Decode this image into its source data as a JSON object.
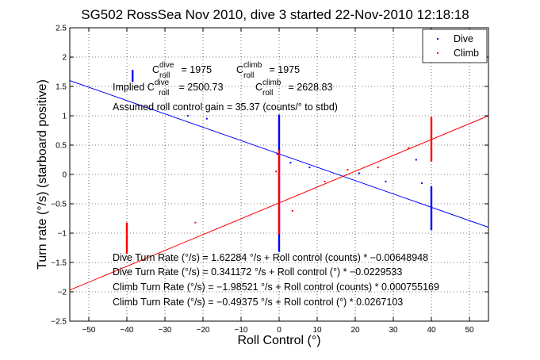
{
  "chart_data": {
    "type": "scatter",
    "title": "SG502 RossSea Nov 2010, dive 3 started 22-Nov-2010 12:18:18",
    "xlabel": "Roll Control (°)",
    "ylabel": "Turn rate (°/s) (starboard positive)",
    "xlim": [
      -55,
      55
    ],
    "ylim": [
      -2.5,
      2.5
    ],
    "xticks": [
      -50,
      -40,
      -30,
      -20,
      -10,
      0,
      10,
      20,
      30,
      40,
      50
    ],
    "yticks": [
      -2.5,
      -2,
      -1.5,
      -1,
      -0.5,
      0,
      0.5,
      1,
      1.5,
      2,
      2.5
    ],
    "xtick_labels": [
      "−50",
      "−40",
      "−30",
      "−20",
      "−10",
      "0",
      "10",
      "20",
      "30",
      "40",
      "50"
    ],
    "ytick_labels": [
      "−2.5",
      "−2",
      "−1.5",
      "−1",
      "−0.5",
      "0",
      "0.5",
      "1",
      "1.5",
      "2",
      "2.5"
    ],
    "grid": true,
    "legend_position": "top-right",
    "series": [
      {
        "name": "Dive",
        "color": "#0000ff",
        "clusters": [
          {
            "x": -38.5,
            "y_min": 1.58,
            "y_max": 1.78
          },
          {
            "x": 0,
            "y_min": -1.32,
            "y_max": 1.02
          },
          {
            "x": 40,
            "y_min": -0.95,
            "y_max": -0.2
          }
        ],
        "points": [
          [
            -24,
            1.0
          ],
          [
            -19,
            0.95
          ],
          [
            -0.5,
            0.35
          ],
          [
            3,
            0.2
          ],
          [
            8,
            0.12
          ],
          [
            21,
            0.02
          ],
          [
            28,
            -0.12
          ],
          [
            36,
            0.25
          ],
          [
            37.5,
            -0.15
          ]
        ]
      },
      {
        "name": "Climb",
        "color": "#ff0000",
        "clusters": [
          {
            "x": -40,
            "y_min": -1.35,
            "y_max": -0.82
          },
          {
            "x": 0,
            "y_min": -1.02,
            "y_max": 0.42
          },
          {
            "x": 40,
            "y_min": 0.22,
            "y_max": 0.98
          }
        ],
        "points": [
          [
            -22,
            -0.82
          ],
          [
            -0.8,
            0.05
          ],
          [
            3.5,
            -0.62
          ],
          [
            12,
            -0.12
          ],
          [
            18,
            0.08
          ],
          [
            26,
            0.12
          ],
          [
            34,
            0.45
          ]
        ]
      }
    ],
    "fit_lines": [
      {
        "name": "Dive fit",
        "color": "#0000ff",
        "x": [
          -55,
          55
        ],
        "y": [
          1.6,
          -0.9
        ]
      },
      {
        "name": "Climb fit",
        "color": "#ff0000",
        "x": [
          -55,
          55
        ],
        "y": [
          -1.97,
          1.0
        ]
      }
    ],
    "annotations": {
      "c_dive": {
        "base": "C",
        "sup": "dive",
        "sub": "roll",
        "value": " = 1975"
      },
      "c_climb": {
        "base": "C",
        "sup": "climb",
        "sub": "roll",
        "value": " = 1975"
      },
      "implied_prefix": "Implied ",
      "implied_dive": {
        "base": "C",
        "sup": "dive",
        "sub": "roll",
        "value": " = 2500.73"
      },
      "implied_climb": {
        "base": "C",
        "sup": "climb",
        "sub": "roll",
        "value": " = 2628.83"
      },
      "gain": "Assumed roll control gain = 35.37 (counts/° to stbd)",
      "eq1": "Dive Turn Rate (°/s) = 1.62284 °/s + Roll control (counts) * −0.00648948",
      "eq2": "Dive Turn Rate (°/s) = 0.341172 °/s + Roll control (°) * −0.0229533",
      "eq3": "Climb Turn Rate (°/s) = −1.98521 °/s + Roll control (counts) * 0.000755169",
      "eq4": "Climb Turn Rate (°/s) = −0.49375 °/s + Roll control (°) * 0.0267103"
    }
  }
}
